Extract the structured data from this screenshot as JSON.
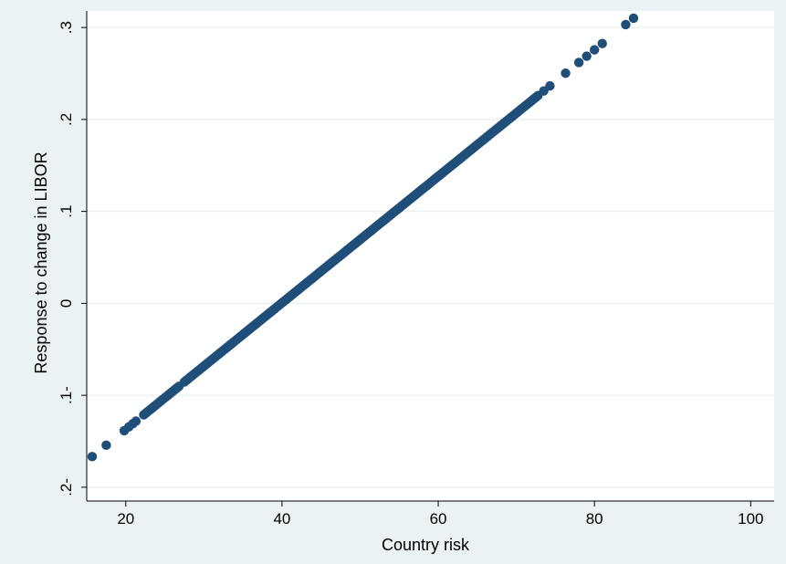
{
  "chart_data": {
    "type": "scatter",
    "xlabel": "Country risk",
    "ylabel": "Response to change in LIBOR",
    "xlim": [
      15,
      103
    ],
    "ylim": [
      -0.215,
      0.318
    ],
    "x_ticks": [
      20,
      40,
      60,
      80,
      100
    ],
    "x_tick_labels": [
      "20",
      "40",
      "60",
      "80",
      "100"
    ],
    "y_ticks": [
      -0.2,
      -0.1,
      0,
      0.1,
      0.2,
      0.3
    ],
    "y_tick_labels": [
      ".2-",
      ".1-",
      "0",
      ".1",
      ".2",
      ".3"
    ],
    "grid": "horizontal",
    "legend": "none",
    "line": {
      "slope": 0.00688,
      "intercept": -0.2747
    },
    "dense_ranges": [
      [
        22.3,
        26.8
      ],
      [
        27.5,
        72.8
      ]
    ],
    "sparse_x": [
      15.7,
      17.5,
      19.8,
      20.4,
      20.9,
      21.3,
      73.5,
      74.3,
      76.3,
      78.0,
      79.0,
      80.0,
      81.0,
      84.0,
      85.0
    ],
    "colors": {
      "marker": "#1f4e79",
      "plot_background": "#ffffff",
      "figure_background": "#eaf2f3",
      "grid": "#e6ecee"
    }
  }
}
